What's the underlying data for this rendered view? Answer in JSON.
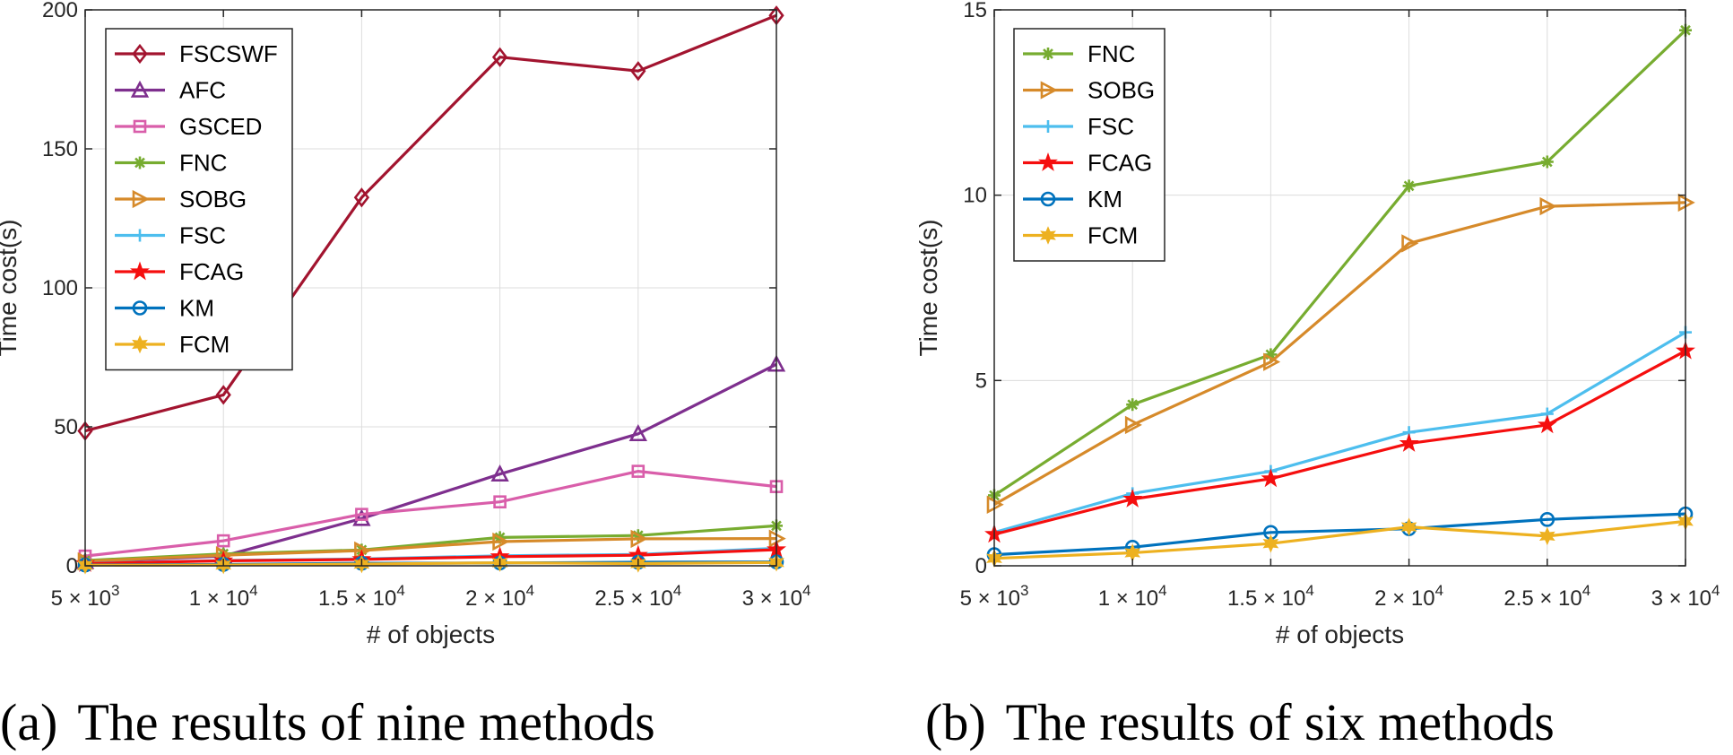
{
  "chart_data": [
    {
      "type": "line",
      "caption_label": "(a)",
      "caption": "The results of nine methods",
      "xlabel": "# of objects",
      "ylabel": "Time cost(s)",
      "x": [
        5000,
        10000,
        15000,
        20000,
        25000,
        30000
      ],
      "xlim": [
        5000,
        30000
      ],
      "ylim": [
        0,
        200
      ],
      "xticks": [
        {
          "mant": "5",
          "exp": "3"
        },
        {
          "mant": "1",
          "exp": "4"
        },
        {
          "mant": "1.5",
          "exp": "4"
        },
        {
          "mant": "2",
          "exp": "4"
        },
        {
          "mant": "2.5",
          "exp": "4"
        },
        {
          "mant": "3",
          "exp": "4"
        }
      ],
      "yticks": [
        0,
        50,
        100,
        150,
        200
      ],
      "grid": true,
      "legend_position": "top-left",
      "series": [
        {
          "name": "FSCSWF",
          "color": "#a2142f",
          "marker": "diamond",
          "values": [
            48.5,
            61.5,
            132.5,
            183,
            178,
            198
          ]
        },
        {
          "name": "AFC",
          "color": "#7e2f8e",
          "marker": "triangle",
          "values": [
            1.5,
            3.5,
            17,
            33,
            47.5,
            72.5
          ]
        },
        {
          "name": "GSCED",
          "color": "#d95eaa",
          "marker": "square",
          "values": [
            3.5,
            9,
            18.5,
            23,
            34,
            28.5
          ]
        },
        {
          "name": "FNC",
          "color": "#77ac30",
          "marker": "asterisk",
          "values": [
            1.9,
            4.3,
            5.7,
            10.2,
            10.9,
            14.4
          ]
        },
        {
          "name": "SOBG",
          "color": "#d68a2a",
          "marker": "triangle-right",
          "values": [
            1.6,
            3.8,
            5.5,
            8.7,
            9.7,
            9.8
          ]
        },
        {
          "name": "FSC",
          "color": "#4dbeee",
          "marker": "plus",
          "values": [
            0.9,
            1.9,
            2.5,
            3.6,
            4.1,
            6.3
          ]
        },
        {
          "name": "FCAG",
          "color": "#f50e0e",
          "marker": "star",
          "values": [
            0.8,
            1.8,
            2.3,
            3.3,
            3.8,
            5.8
          ]
        },
        {
          "name": "KM",
          "color": "#0072bd",
          "marker": "circle",
          "values": [
            0.3,
            0.5,
            0.9,
            1.0,
            1.3,
            1.4
          ]
        },
        {
          "name": "FCM",
          "color": "#edb120",
          "marker": "hexagram",
          "values": [
            0.2,
            0.3,
            0.6,
            1.1,
            0.8,
            1.2
          ]
        }
      ]
    },
    {
      "type": "line",
      "caption_label": "(b)",
      "caption": "The results of six methods",
      "xlabel": "# of objects",
      "ylabel": "Time cost(s)",
      "x": [
        5000,
        10000,
        15000,
        20000,
        25000,
        30000
      ],
      "xlim": [
        5000,
        30000
      ],
      "ylim": [
        0,
        15
      ],
      "xticks": [
        {
          "mant": "5",
          "exp": "3"
        },
        {
          "mant": "1",
          "exp": "4"
        },
        {
          "mant": "1.5",
          "exp": "4"
        },
        {
          "mant": "2",
          "exp": "4"
        },
        {
          "mant": "2.5",
          "exp": "4"
        },
        {
          "mant": "3",
          "exp": "4"
        }
      ],
      "yticks": [
        0,
        5,
        10,
        15
      ],
      "grid": true,
      "legend_position": "top-left",
      "series": [
        {
          "name": "FNC",
          "color": "#77ac30",
          "marker": "asterisk",
          "values": [
            1.9,
            4.35,
            5.7,
            10.25,
            10.9,
            14.45
          ]
        },
        {
          "name": "SOBG",
          "color": "#d68a2a",
          "marker": "triangle-right",
          "values": [
            1.65,
            3.8,
            5.5,
            8.7,
            9.7,
            9.8
          ]
        },
        {
          "name": "FSC",
          "color": "#4dbeee",
          "marker": "plus",
          "values": [
            0.9,
            1.95,
            2.55,
            3.6,
            4.1,
            6.3
          ]
        },
        {
          "name": "FCAG",
          "color": "#f50e0e",
          "marker": "star",
          "values": [
            0.85,
            1.8,
            2.35,
            3.3,
            3.8,
            5.8
          ]
        },
        {
          "name": "KM",
          "color": "#0072bd",
          "marker": "circle",
          "values": [
            0.3,
            0.5,
            0.9,
            1.0,
            1.25,
            1.4
          ]
        },
        {
          "name": "FCM",
          "color": "#edb120",
          "marker": "hexagram",
          "values": [
            0.2,
            0.35,
            0.6,
            1.05,
            0.8,
            1.2
          ]
        }
      ]
    }
  ]
}
